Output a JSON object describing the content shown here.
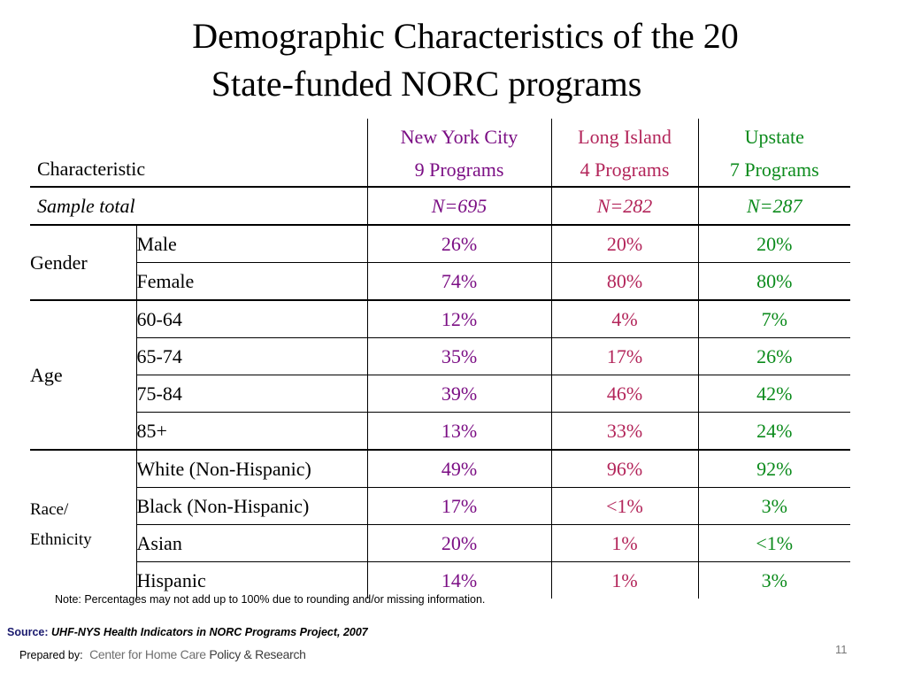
{
  "slide": {
    "title_line1": "Demographic Characteristics of the 20",
    "title_line2": "State-funded NORC programs",
    "page_number": "11"
  },
  "table": {
    "header": {
      "characteristic": "Characteristic",
      "nyc_name": "New York City",
      "nyc_programs": "9 Programs",
      "li_name": "Long Island",
      "li_programs": "4 Programs",
      "up_name": "Upstate",
      "up_programs": "7 Programs"
    },
    "sample": {
      "label": "Sample total",
      "nyc": "N=695",
      "li": "N=282",
      "up": "N=287"
    },
    "gender": {
      "label": "Gender",
      "rows": [
        {
          "label": "Male",
          "nyc": "26%",
          "li": "20%",
          "up": "20%"
        },
        {
          "label": "Female",
          "nyc": "74%",
          "li": "80%",
          "up": "80%"
        }
      ]
    },
    "age": {
      "label": "Age",
      "rows": [
        {
          "label": "60-64",
          "nyc": "12%",
          "li": "4%",
          "up": "7%"
        },
        {
          "label": "65-74",
          "nyc": "35%",
          "li": "17%",
          "up": "26%"
        },
        {
          "label": "75-84",
          "nyc": "39%",
          "li": "46%",
          "up": "42%"
        },
        {
          "label": "85+",
          "nyc": "13%",
          "li": "33%",
          "up": "24%"
        }
      ]
    },
    "race": {
      "label_line1": "Race/",
      "label_line2": "Ethnicity",
      "rows": [
        {
          "label": "White (Non-Hispanic)",
          "nyc": "49%",
          "li": "96%",
          "up": "92%"
        },
        {
          "label": "Black (Non-Hispanic)",
          "nyc": "17%",
          "li": "<1%",
          "up": "3%"
        },
        {
          "label": "Asian",
          "nyc": "20%",
          "li": "1%",
          "up": "<1%"
        },
        {
          "label": "Hispanic",
          "nyc": "14%",
          "li": "1%",
          "up": "3%"
        }
      ]
    }
  },
  "footer": {
    "note": "Note: Percentages may not add up to 100% due to rounding and/or missing information.",
    "source_label": "Source:",
    "source_text": "UHF-NYS Health Indicators in NORC Programs Project, 2007",
    "prepared_label": "Prepared by:",
    "logo_part1": "Center for Home Care ",
    "logo_part2": "Policy & Research"
  },
  "colors": {
    "nyc": "#7b0e84",
    "long_island": "#b3255a",
    "upstate": "#0c8b1c"
  }
}
